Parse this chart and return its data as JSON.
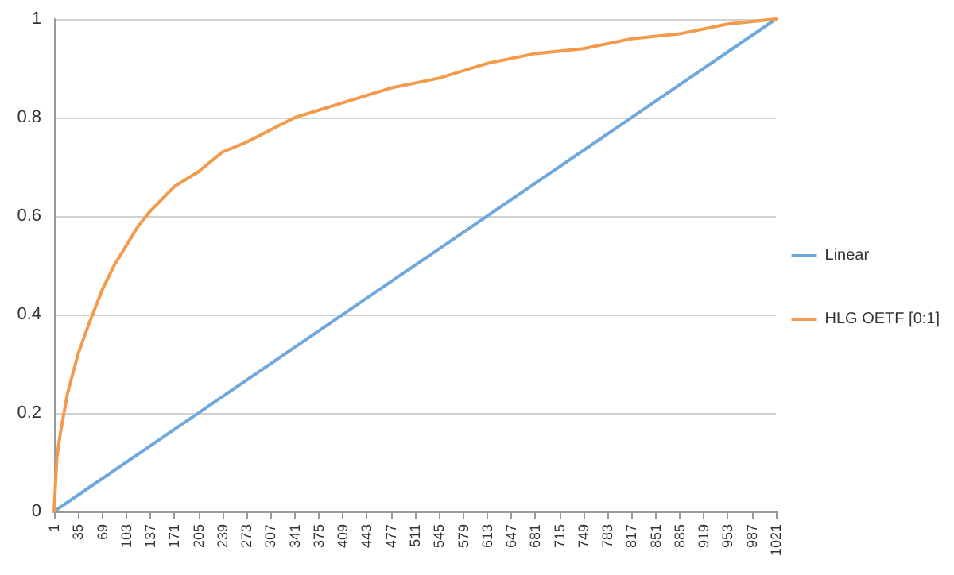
{
  "chart_data": {
    "type": "line",
    "xlim": [
      1,
      1021
    ],
    "xticks": [
      1,
      35,
      69,
      103,
      137,
      171,
      205,
      239,
      273,
      307,
      341,
      375,
      409,
      443,
      477,
      511,
      545,
      579,
      613,
      647,
      681,
      715,
      749,
      783,
      817,
      851,
      885,
      919,
      953,
      987,
      1021
    ],
    "ylim": [
      0,
      1
    ],
    "yticks": [
      0,
      0.2,
      0.4,
      0.6,
      0.8,
      1
    ],
    "grid": "y",
    "legend": "right",
    "marker": "none",
    "line_style": "solid",
    "series": [
      {
        "name": "Linear",
        "color": "#6fa8dc",
        "x": [
          1,
          1021
        ],
        "values": [
          0,
          1
        ]
      },
      {
        "name": "HLG OETF [0:1]",
        "color": "#f39a4c",
        "x": [
          1,
          5,
          10,
          20,
          35,
          50,
          69,
          86,
          103,
          120,
          137,
          171,
          205,
          239,
          273,
          341,
          409,
          477,
          545,
          613,
          681,
          749,
          817,
          885,
          953,
          1021
        ],
        "values": [
          0,
          0.11,
          0.16,
          0.24,
          0.32,
          0.38,
          0.45,
          0.5,
          0.54,
          0.58,
          0.61,
          0.66,
          0.69,
          0.73,
          0.75,
          0.8,
          0.83,
          0.86,
          0.88,
          0.91,
          0.93,
          0.94,
          0.96,
          0.97,
          0.99,
          1
        ]
      }
    ]
  }
}
